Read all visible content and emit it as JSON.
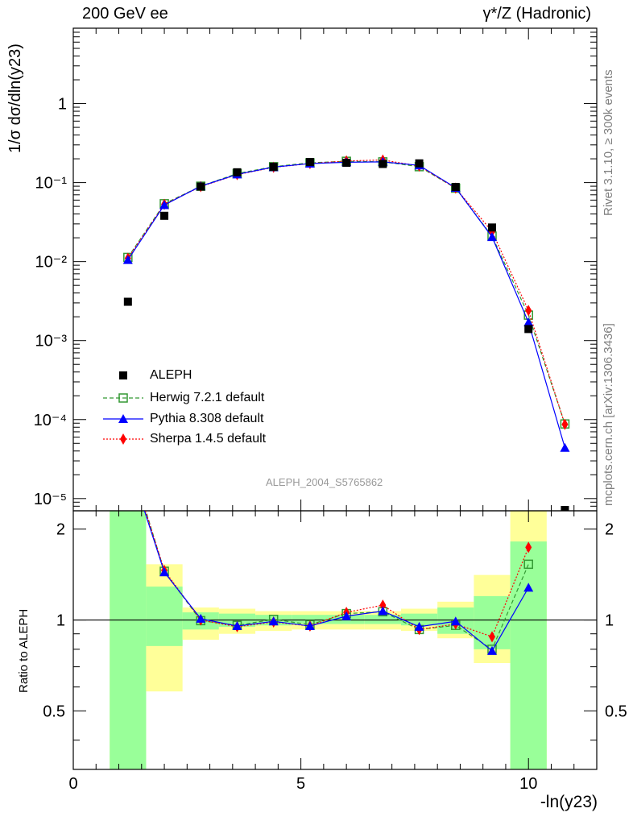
{
  "chart_data": {
    "type": "scatter",
    "title_left": "200 GeV ee",
    "title_right": "γ*/Z (Hadronic)",
    "analysis_id": "ALEPH_2004_S5765862",
    "side_label_top": "Rivet 3.1.10, ≥ 300k events",
    "side_label_bottom": "mcplots.cern.ch [arXiv:1306.3436]",
    "xlabel": "-ln(y23)",
    "ylabel": "1/σ dσ/dln(y23)",
    "ratio_ylabel": "Ratio to ALEPH",
    "xlim": [
      0,
      11.5
    ],
    "ylim": [
      7e-06,
      9
    ],
    "ratio_ylim": [
      0.32,
      2.3
    ],
    "x_ticks": [
      "0",
      "5",
      "10"
    ],
    "y_ticks": [
      "10⁻⁵",
      "10⁻⁴",
      "10⁻³",
      "10⁻²",
      "10⁻¹",
      "1"
    ],
    "ratio_ticks": [
      "0.5",
      "1",
      "2"
    ],
    "legend": [
      "ALEPH",
      "Herwig 7.2.1 default",
      "Pythia 8.308 default",
      "Sherpa 1.4.5 default"
    ],
    "x": [
      1.2,
      2.0,
      2.8,
      3.6,
      4.4,
      5.2,
      6.0,
      6.8,
      7.6,
      8.4,
      9.2,
      10.0,
      10.8
    ],
    "series": [
      {
        "name": "ALEPH",
        "color": "#000000",
        "marker": "square",
        "values": [
          0.0031,
          0.038,
          0.089,
          0.135,
          0.158,
          0.182,
          0.178,
          0.172,
          0.175,
          0.088,
          0.027,
          0.0014,
          6.5e-06
        ]
      },
      {
        "name": "Herwig 7.2.1 default",
        "color": "#339933",
        "marker": "open-square",
        "dash": "5,3",
        "values": [
          0.0113,
          0.054,
          0.09,
          0.13,
          0.159,
          0.178,
          0.186,
          0.183,
          0.159,
          0.085,
          0.021,
          0.0021,
          8.8e-05
        ]
      },
      {
        "name": "Pythia 8.308 default",
        "color": "#0000ff",
        "marker": "triangle",
        "values": [
          0.0105,
          0.052,
          0.09,
          0.127,
          0.157,
          0.174,
          0.181,
          0.183,
          0.165,
          0.086,
          0.0205,
          0.0017,
          4.4e-05
        ]
      },
      {
        "name": "Sherpa 1.4.5 default",
        "color": "#ff0000",
        "marker": "diamond",
        "dash": "2,2",
        "values": [
          0.011,
          0.053,
          0.089,
          0.126,
          0.156,
          0.174,
          0.188,
          0.193,
          0.162,
          0.085,
          0.024,
          0.0024,
          8.7e-05
        ]
      }
    ],
    "ratio_series": [
      {
        "name": "Herwig 7.2.1 default",
        "values": [
          3.6,
          1.45,
          0.995,
          0.96,
          1.005,
          0.965,
          1.05,
          1.065,
          0.93,
          0.96,
          0.8,
          1.53
        ]
      },
      {
        "name": "Pythia 8.308 default",
        "values": [
          3.4,
          1.44,
          1.01,
          0.955,
          0.99,
          0.955,
          1.03,
          1.07,
          0.95,
          0.99,
          0.79,
          1.28
        ]
      },
      {
        "name": "Sherpa 1.4.5 default",
        "values": [
          3.5,
          1.46,
          1.0,
          0.95,
          0.985,
          0.955,
          1.06,
          1.12,
          0.93,
          0.97,
          0.88,
          1.74
        ]
      }
    ],
    "uncertainty_bands": {
      "x_low": [
        0.8,
        1.6,
        2.4,
        3.2,
        4.0,
        4.8,
        5.6,
        6.4,
        7.2,
        8.0,
        8.8,
        9.6
      ],
      "x_high": [
        1.6,
        2.4,
        3.2,
        4.0,
        4.8,
        5.6,
        6.4,
        7.2,
        8.0,
        8.8,
        9.6,
        10.4
      ],
      "stat_lo": [
        0.3,
        0.82,
        0.93,
        0.95,
        0.96,
        0.97,
        0.97,
        0.97,
        0.96,
        0.9,
        0.8,
        0.3
      ],
      "stat_hi": [
        2.3,
        1.29,
        1.06,
        1.05,
        1.04,
        1.04,
        1.04,
        1.04,
        1.05,
        1.1,
        1.2,
        1.82
      ],
      "total_lo": [
        0.3,
        0.58,
        0.86,
        0.9,
        0.92,
        0.93,
        0.93,
        0.93,
        0.92,
        0.87,
        0.72,
        0.3
      ],
      "total_hi": [
        2.3,
        1.53,
        1.1,
        1.09,
        1.07,
        1.07,
        1.07,
        1.07,
        1.09,
        1.15,
        1.41,
        2.3
      ],
      "stat_color": "#99ff99",
      "total_color": "#ffff99"
    }
  }
}
